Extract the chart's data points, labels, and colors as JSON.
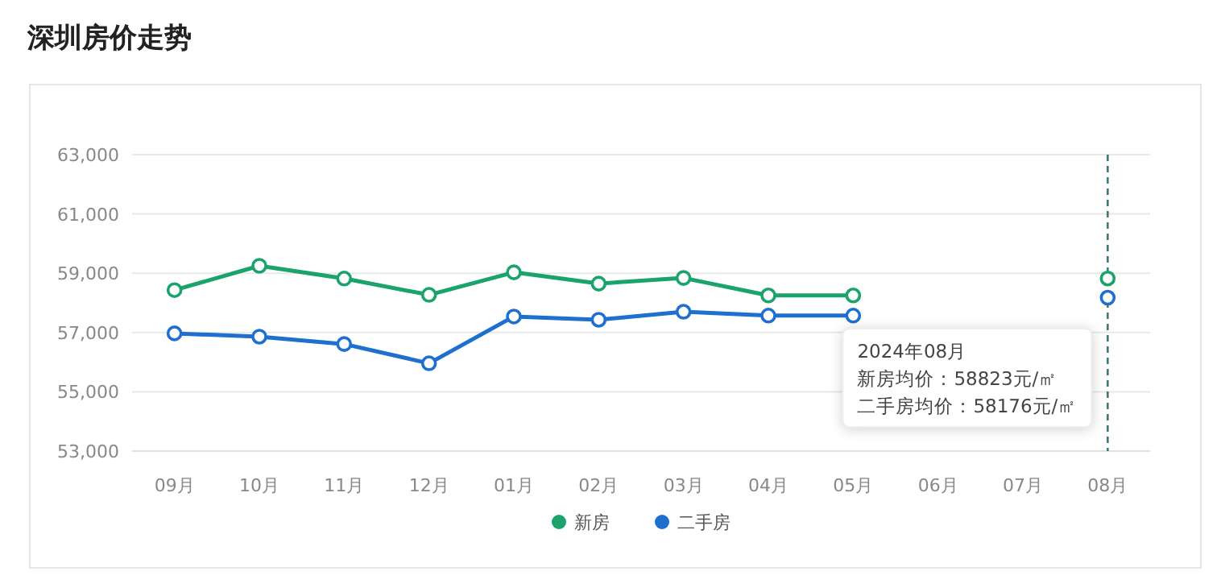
{
  "chart_data": {
    "type": "line",
    "title": "深圳房价走势",
    "categories": [
      "09月",
      "10月",
      "11月",
      "12月",
      "01月",
      "02月",
      "03月",
      "04月",
      "05月",
      "06月",
      "07月",
      "08月"
    ],
    "series": [
      {
        "name": "新房",
        "color": "#1aa36b",
        "values": [
          58430,
          59250,
          58820,
          58270,
          59030,
          58650,
          58840,
          58250,
          58250,
          null,
          null,
          58823
        ]
      },
      {
        "name": "二手房",
        "color": "#1f6fd1",
        "values": [
          56970,
          56860,
          56610,
          55960,
          57540,
          57430,
          57700,
          57570,
          57570,
          null,
          null,
          58176
        ]
      }
    ],
    "ylim": [
      53000,
      63000
    ],
    "yticks": [
      {
        "value": 53000,
        "label": "53,000"
      },
      {
        "value": 55000,
        "label": "55,000"
      },
      {
        "value": 57000,
        "label": "57,000"
      },
      {
        "value": 59000,
        "label": "59,000"
      },
      {
        "value": 61000,
        "label": "61,000"
      },
      {
        "value": 63000,
        "label": "63,000"
      }
    ],
    "grid": "y",
    "legend": "bottom",
    "marker": "circle",
    "line_style": "solid",
    "ref_lines": [
      {
        "axis": "x",
        "value": "08月",
        "color": "#3d7a78",
        "line_style": "dashed"
      }
    ],
    "annotations": [
      "2024年08月",
      "新房均价：58823元/㎡",
      "二手房均价：58176元/㎡"
    ]
  }
}
